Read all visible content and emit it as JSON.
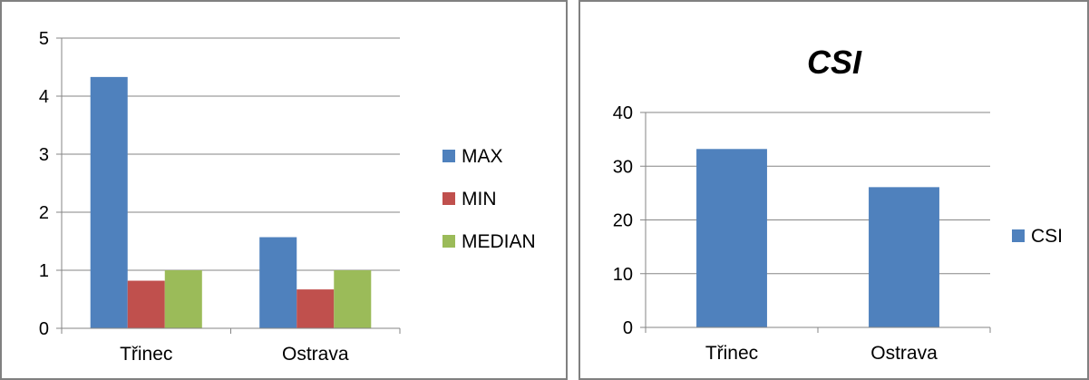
{
  "chart_data": [
    {
      "type": "bar",
      "categories": [
        "Třinec",
        "Ostrava"
      ],
      "series": [
        {
          "name": "MAX",
          "values": [
            4.33,
            1.57
          ],
          "color": "#4F81BD"
        },
        {
          "name": "MIN",
          "values": [
            0.82,
            0.67
          ],
          "color": "#C0504D"
        },
        {
          "name": "MEDIAN",
          "values": [
            1.0,
            1.0
          ],
          "color": "#9BBB59"
        }
      ],
      "title": "",
      "xlabel": "",
      "ylabel": "",
      "ylim": [
        0,
        5
      ],
      "yticks": [
        0,
        1,
        2,
        3,
        4,
        5
      ],
      "grid": true,
      "legend": "right"
    },
    {
      "type": "bar",
      "categories": [
        "Třinec",
        "Ostrava"
      ],
      "series": [
        {
          "name": "CSI",
          "values": [
            33.2,
            26.1
          ],
          "color": "#4F81BD"
        }
      ],
      "title": "CSI",
      "xlabel": "",
      "ylabel": "",
      "ylim": [
        0,
        40
      ],
      "yticks": [
        0,
        10,
        20,
        30,
        40
      ],
      "grid": true,
      "legend": "right"
    }
  ]
}
